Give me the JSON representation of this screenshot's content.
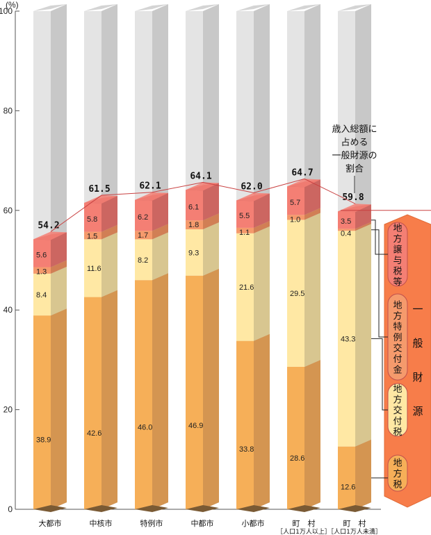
{
  "chart_data": {
    "type": "bar",
    "stacked": true,
    "y_unit": "(%)",
    "ylim": [
      0,
      100
    ],
    "y_ticks": [
      0,
      20,
      40,
      60,
      80,
      100
    ],
    "reference_line": 60,
    "categories": [
      {
        "label": "大都市",
        "sublabel": ""
      },
      {
        "label": "中核市",
        "sublabel": ""
      },
      {
        "label": "特例市",
        "sublabel": ""
      },
      {
        "label": "中都市",
        "sublabel": ""
      },
      {
        "label": "小都市",
        "sublabel": ""
      },
      {
        "label": "町　村",
        "sublabel": "［人口1万人以上］"
      },
      {
        "label": "町　村",
        "sublabel": "［人口1万人未満］"
      }
    ],
    "series": [
      {
        "name": "地方税",
        "color": "#F6AF58",
        "side": "#D49551",
        "values": [
          38.9,
          42.6,
          46.0,
          46.9,
          33.8,
          28.6,
          12.6
        ]
      },
      {
        "name": "地方交付税",
        "color": "#FFE8A4",
        "side": "#D8C690",
        "values": [
          8.4,
          11.6,
          8.2,
          9.3,
          21.6,
          29.5,
          43.3
        ]
      },
      {
        "name": "地方特例交付金",
        "color": "#F59A6C",
        "side": "#D17F55",
        "values": [
          1.3,
          1.5,
          1.7,
          1.8,
          1.1,
          1.0,
          0.4
        ]
      },
      {
        "name": "地方譲与税等",
        "color": "#F47F74",
        "side": "#CC6661",
        "values": [
          5.6,
          5.8,
          6.2,
          6.1,
          5.5,
          5.7,
          3.5
        ]
      }
    ],
    "totals": [
      "54.2",
      "61.5",
      "62.1",
      "64.1",
      "62.0",
      "64.7",
      "59.8"
    ],
    "background_color": "#E4E4E4",
    "background_side": "#C8C8C8",
    "annotation": [
      "歳入総額に",
      "占める",
      "一般財源の",
      "割合"
    ],
    "group_label": [
      "一",
      "般",
      "財",
      "源"
    ],
    "legend_labels": [
      "地方譲与税等",
      "地方特例交付金",
      "地方交付税",
      "地方税"
    ]
  }
}
